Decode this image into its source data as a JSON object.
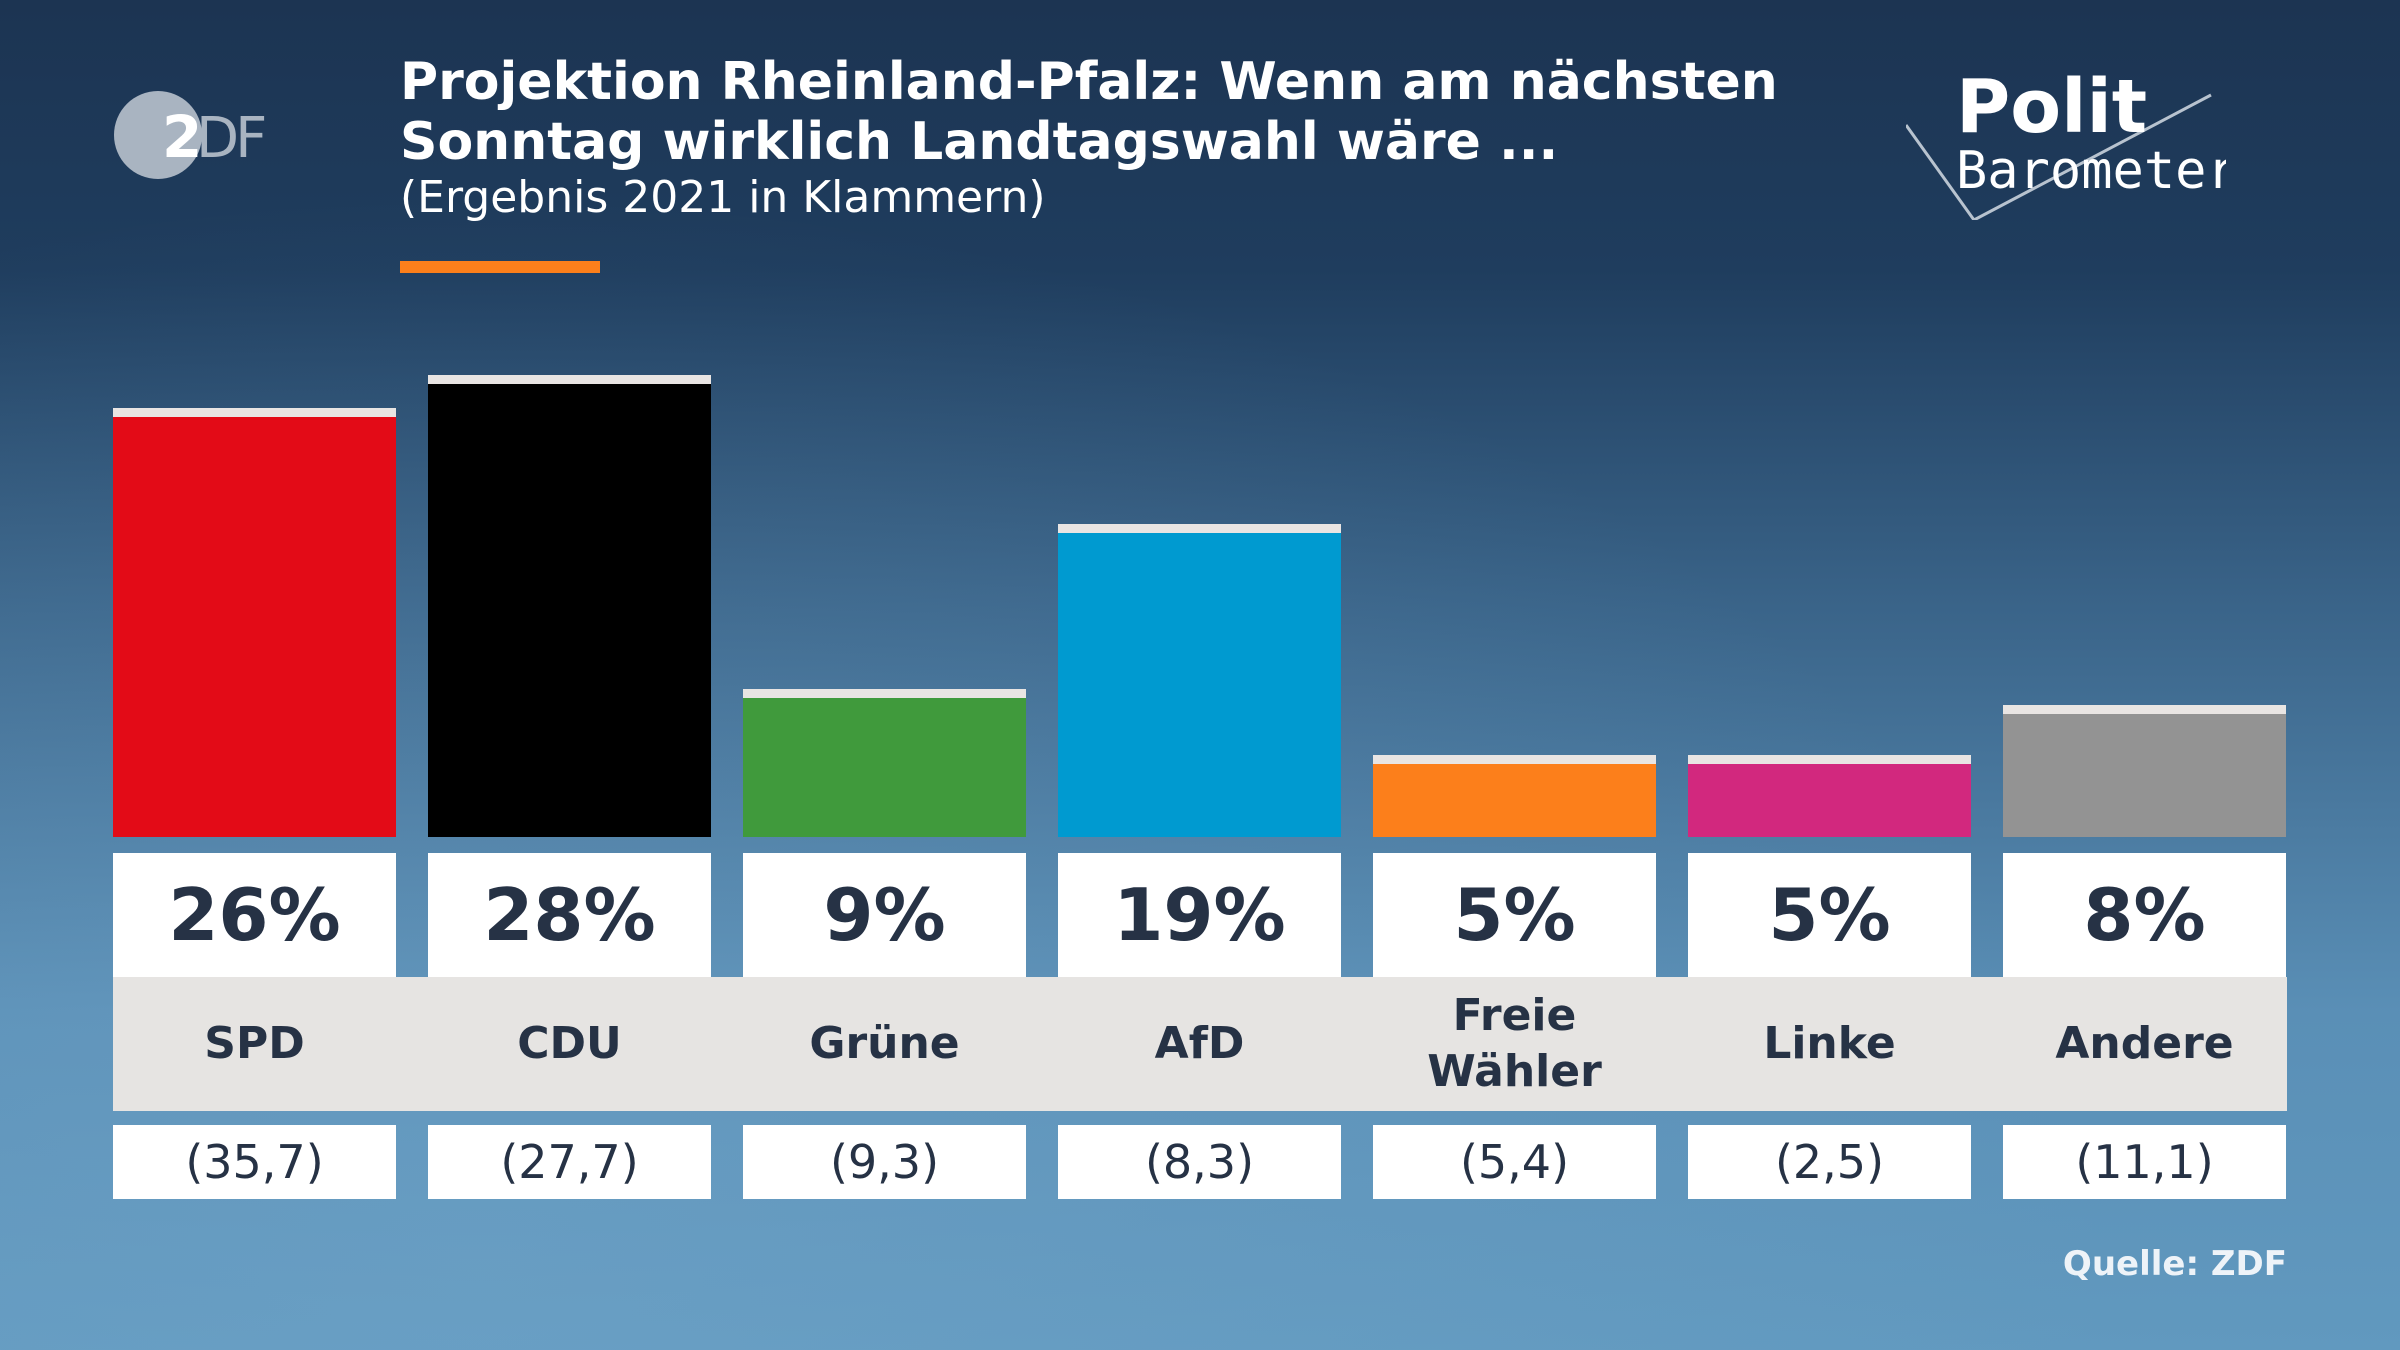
{
  "header": {
    "title_line1": "Projektion Rheinland-Pfalz: Wenn am nächsten",
    "title_line2": "Sonntag wirklich Landtagswahl wäre ...",
    "subtitle": "(Ergebnis 2021 in Klammern)",
    "logo": "ZDF",
    "brand_line1": "Polit",
    "brand_line2": "Barometer"
  },
  "footer": {
    "source": "Quelle: ZDF"
  },
  "chart_data": {
    "type": "bar",
    "title": "Projektion Rheinland-Pfalz: Wenn am nächsten Sonntag wirklich Landtagswahl wäre ...",
    "subtitle": "(Ergebnis 2021 in Klammern)",
    "categories": [
      "SPD",
      "CDU",
      "Grüne",
      "AfD",
      "Freie Wähler",
      "Linke",
      "Andere"
    ],
    "values": [
      26,
      28,
      9,
      19,
      5,
      5,
      8
    ],
    "value_labels": [
      "26%",
      "28%",
      "9%",
      "19%",
      "5%",
      "5%",
      "8%"
    ],
    "previous_labels": [
      "(35,7)",
      "(27,7)",
      "(9,3)",
      "(8,3)",
      "(5,4)",
      "(2,5)",
      "(11,1)"
    ],
    "previous": [
      35.7,
      27.7,
      9.3,
      8.3,
      5.4,
      2.5,
      11.1
    ],
    "colors": [
      "#e30b17",
      "#000000",
      "#409a3c",
      "#009ad0",
      "#fc7f1b",
      "#d2287e",
      "#939393"
    ],
    "unit": "%",
    "grid": false,
    "legend": "none"
  }
}
